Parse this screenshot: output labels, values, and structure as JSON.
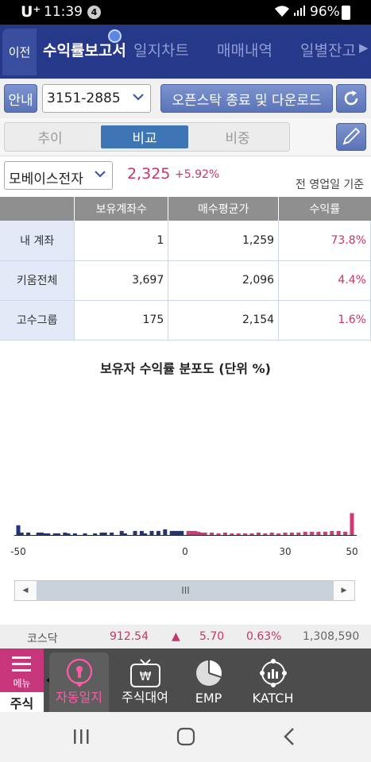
{
  "status_bar": {
    "carrier": "U⁺",
    "time": "11:39",
    "notification_count": "4",
    "battery": "96%"
  },
  "nav": {
    "back_label": "이전",
    "tabs": [
      "수익률보고서",
      "일지차트",
      "매매내역",
      "일별잔고"
    ],
    "active_tab": 0
  },
  "account": {
    "guide_label": "안내",
    "account_number": "3151-2885",
    "openstock_button": "오픈스탁 종료 및 다운로드"
  },
  "segments": {
    "items": [
      "추이",
      "비교",
      "비중"
    ],
    "active": "비교"
  },
  "stock": {
    "name": "모베이스전자",
    "price": "2,325",
    "change": "+5.92%",
    "basis": "전 영업일 기준"
  },
  "table": {
    "headers": [
      "",
      "보유계좌수",
      "매수평균가",
      "수익률"
    ],
    "rows": [
      {
        "label": "내 계좌",
        "accounts": "1",
        "avg_price": "1,259",
        "return": "73.8%"
      },
      {
        "label": "키움전체",
        "accounts": "3,697",
        "avg_price": "2,096",
        "return": "4.4%"
      },
      {
        "label": "고수그룹",
        "accounts": "175",
        "avg_price": "2,154",
        "return": "1.6%"
      }
    ]
  },
  "chart_data": {
    "type": "bar",
    "title": "보유자 수익률 분포도 (단위 %)",
    "x_tick_labels": [
      "-50",
      "0",
      "30",
      "50"
    ],
    "xlim": [
      -50,
      50
    ],
    "colors": {
      "negative": "#23357a",
      "positive": "#cf3a78"
    },
    "x": [
      -50,
      -49,
      -47,
      -44,
      -43,
      -42,
      -41,
      -39,
      -38,
      -36,
      -35,
      -33,
      -30,
      -27,
      -25,
      -24,
      -22,
      -19,
      -18,
      -15,
      -13,
      -12,
      -10,
      -8,
      -6,
      -4,
      -3,
      -2,
      -1,
      1,
      2,
      3,
      4,
      5,
      6,
      8,
      10,
      12,
      14,
      16,
      18,
      20,
      22,
      24,
      26,
      28,
      30,
      32,
      34,
      36,
      38,
      40,
      42,
      44,
      46,
      48,
      50
    ],
    "values": [
      1.2,
      0.3,
      0.3,
      0.3,
      0.3,
      0.2,
      0.2,
      0.2,
      0.2,
      0.3,
      0.2,
      0.2,
      0.2,
      0.2,
      0.3,
      0.3,
      0.3,
      0.5,
      0.2,
      0.5,
      0.5,
      0.2,
      0.5,
      0.5,
      0.7,
      0.5,
      0.5,
      0.5,
      0.5,
      0.5,
      0.5,
      0.5,
      0.4,
      0.3,
      0.3,
      0.3,
      0.2,
      0.3,
      0.2,
      0.2,
      0.2,
      0.2,
      0.3,
      0.2,
      0.3,
      0.2,
      0.3,
      0.3,
      0.3,
      0.4,
      0.4,
      0.4,
      0.4,
      0.5,
      0.5,
      0.4,
      2.7
    ]
  },
  "scrollbar": {
    "thumb_glyph": "III"
  },
  "ticker": {
    "name": "코스닥",
    "value": "912.54",
    "arrow": "▲",
    "change": "5.70",
    "pct": "0.63%",
    "volume": "1,308,590"
  },
  "bottom": {
    "menu_label": "메뉴",
    "stock_label": "주식",
    "items": [
      {
        "label": "자동일지",
        "icon": "keyhole-icon"
      },
      {
        "label": "주식대여",
        "icon": "won-tv-icon"
      },
      {
        "label": "EMP",
        "icon": "pie-icon"
      },
      {
        "label": "KATCH",
        "icon": "network-chart-icon"
      }
    ]
  }
}
